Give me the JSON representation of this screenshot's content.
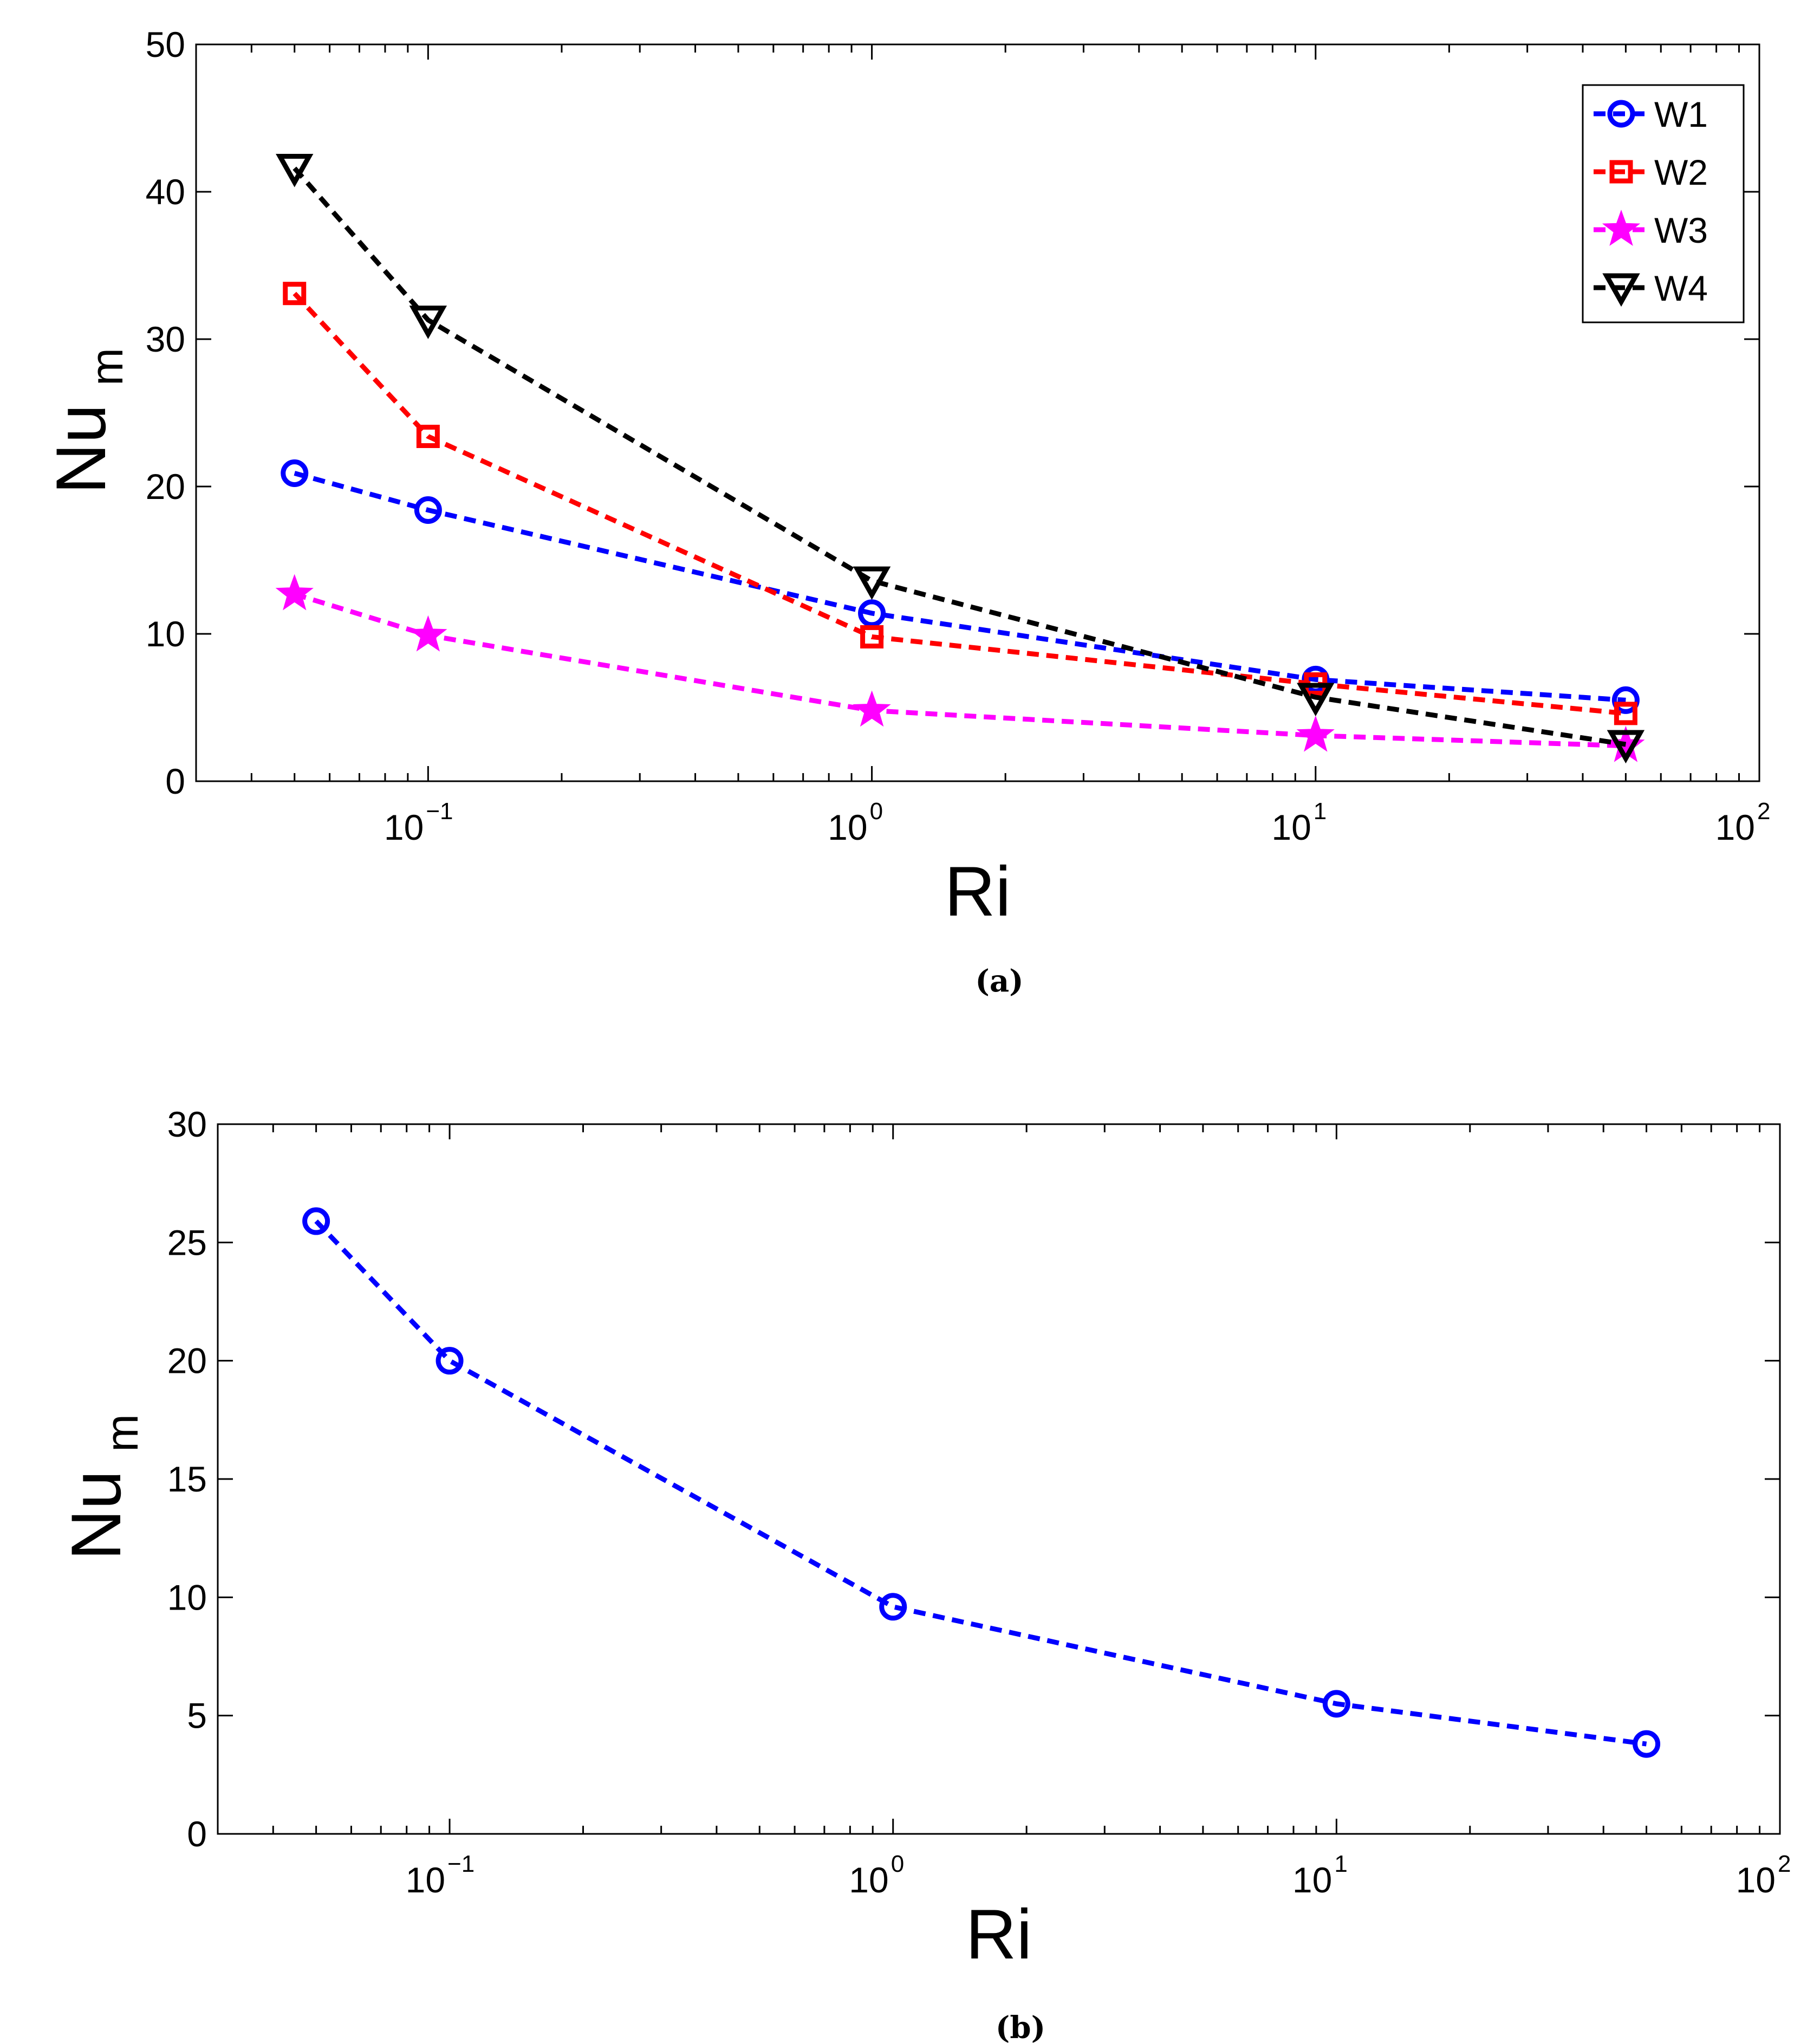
{
  "chart_data": [
    {
      "type": "line",
      "caption": "(a)",
      "xlabel": "Ri",
      "ylabel_main": "Nu",
      "ylabel_sub": "m",
      "xscale": "log",
      "xlim": [
        0.03,
        100
      ],
      "ylim": [
        0,
        50
      ],
      "yticks": [
        "0",
        "10",
        "20",
        "30",
        "40",
        "50"
      ],
      "yticks_values": [
        0,
        10,
        20,
        30,
        40,
        50
      ],
      "xticks": [
        {
          "base": "10",
          "exp": "−1",
          "value": 0.1
        },
        {
          "base": "10",
          "exp": "0",
          "value": 1
        },
        {
          "base": "10",
          "exp": "1",
          "value": 10
        },
        {
          "base": "10",
          "exp": "2",
          "value": 100
        }
      ],
      "legend_position": "top-right",
      "x": [
        0.05,
        0.1,
        1,
        10,
        50
      ],
      "series": [
        {
          "name": "W1",
          "color": "#0000ff",
          "marker": "circle",
          "values": [
            20.9,
            18.4,
            11.4,
            6.9,
            5.5
          ]
        },
        {
          "name": "W2",
          "color": "#ff0000",
          "marker": "square",
          "values": [
            33.1,
            23.4,
            9.8,
            6.6,
            4.6
          ]
        },
        {
          "name": "W3",
          "color": "#ff00ff",
          "marker": "star",
          "values": [
            12.7,
            9.9,
            4.8,
            3.1,
            2.4
          ]
        },
        {
          "name": "W4",
          "color": "#000000",
          "marker": "triangle-down",
          "values": [
            41.6,
            31.3,
            13.6,
            5.7,
            2.5
          ]
        }
      ]
    },
    {
      "type": "line",
      "caption": "(b)",
      "xlabel": "Ri",
      "ylabel_main": "Nu",
      "ylabel_sub": "m",
      "xscale": "log",
      "xlim": [
        0.03,
        100
      ],
      "ylim": [
        0,
        30
      ],
      "yticks": [
        "0",
        "5",
        "10",
        "15",
        "20",
        "25",
        "30"
      ],
      "yticks_values": [
        0,
        5,
        10,
        15,
        20,
        25,
        30
      ],
      "xticks": [
        {
          "base": "10",
          "exp": "−1",
          "value": 0.1
        },
        {
          "base": "10",
          "exp": "0",
          "value": 1
        },
        {
          "base": "10",
          "exp": "1",
          "value": 10
        },
        {
          "base": "10",
          "exp": "2",
          "value": 100
        }
      ],
      "x": [
        0.05,
        0.1,
        1,
        10,
        50
      ],
      "series": [
        {
          "name": "",
          "color": "#0000ff",
          "marker": "circle",
          "values": [
            25.9,
            20.0,
            9.6,
            5.5,
            3.8
          ]
        }
      ]
    }
  ]
}
